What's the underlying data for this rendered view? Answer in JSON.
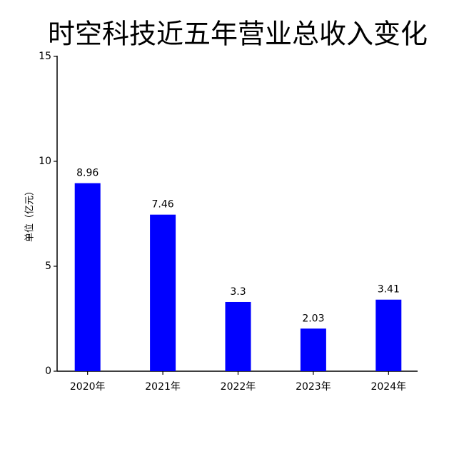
{
  "chart_data": {
    "type": "bar",
    "title": "时空科技近五年营业总收入变化",
    "y_label": "单位（亿元）",
    "categories": [
      "2020年",
      "2021年",
      "2022年",
      "2023年",
      "2024年"
    ],
    "values": [
      8.96,
      7.46,
      3.3,
      2.03,
      3.41
    ],
    "color": "#0000ff",
    "ylim": [
      0,
      15
    ],
    "yticks": [
      0,
      5,
      10,
      15
    ]
  }
}
